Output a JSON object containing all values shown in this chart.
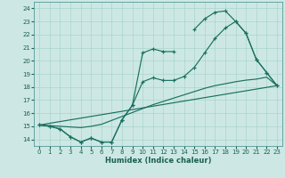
{
  "xlabel": "Humidex (Indice chaleur)",
  "bg_color": "#cde8e4",
  "grid_color": "#aad4cc",
  "line_color": "#1a7060",
  "xlim": [
    -0.5,
    23.5
  ],
  "ylim": [
    13.5,
    24.5
  ],
  "yticks": [
    14,
    15,
    16,
    17,
    18,
    19,
    20,
    21,
    22,
    23,
    24
  ],
  "xticks": [
    0,
    1,
    2,
    3,
    4,
    5,
    6,
    7,
    8,
    9,
    10,
    11,
    12,
    13,
    14,
    15,
    16,
    17,
    18,
    19,
    20,
    21,
    22,
    23
  ],
  "lines": [
    {
      "segments": [
        {
          "x": [
            0,
            1,
            2,
            3,
            4,
            5,
            6,
            7,
            8,
            9,
            10,
            11,
            12,
            13
          ],
          "y": [
            15.1,
            15.0,
            14.8,
            14.2,
            13.8,
            14.1,
            13.8,
            13.8,
            15.5,
            16.6,
            20.6,
            20.9,
            20.7,
            20.7
          ]
        },
        {
          "x": [
            15,
            16,
            17,
            18,
            19,
            20,
            21,
            22,
            23
          ],
          "y": [
            22.4,
            23.2,
            23.7,
            23.8,
            23.0,
            22.1,
            20.1,
            19.1,
            18.1
          ]
        }
      ],
      "marker": true
    },
    {
      "segments": [
        {
          "x": [
            0,
            1,
            2,
            3,
            4,
            5,
            6,
            7,
            8,
            9,
            10,
            11,
            12,
            13,
            14,
            15,
            16,
            17,
            18,
            19,
            20,
            21,
            22,
            23
          ],
          "y": [
            15.1,
            15.0,
            14.8,
            14.2,
            13.8,
            14.1,
            13.8,
            13.8,
            15.5,
            16.6,
            18.4,
            18.7,
            18.5,
            18.5,
            18.8,
            19.5,
            20.6,
            21.7,
            22.5,
            23.0,
            22.1,
            20.1,
            19.1,
            18.1
          ]
        }
      ],
      "marker": true
    },
    {
      "segments": [
        {
          "x": [
            0,
            23
          ],
          "y": [
            15.1,
            18.1
          ]
        }
      ],
      "marker": false
    },
    {
      "segments": [
        {
          "x": [
            0,
            1,
            2,
            3,
            4,
            5,
            6,
            7,
            8,
            9,
            10,
            11,
            12,
            13,
            14,
            15,
            16,
            17,
            18,
            19,
            20,
            21,
            22,
            23
          ],
          "y": [
            15.1,
            15.05,
            15.0,
            14.95,
            14.9,
            15.0,
            15.15,
            15.45,
            15.75,
            16.05,
            16.35,
            16.65,
            16.9,
            17.15,
            17.4,
            17.65,
            17.9,
            18.1,
            18.25,
            18.4,
            18.52,
            18.6,
            18.75,
            18.1
          ]
        }
      ],
      "marker": false
    }
  ]
}
